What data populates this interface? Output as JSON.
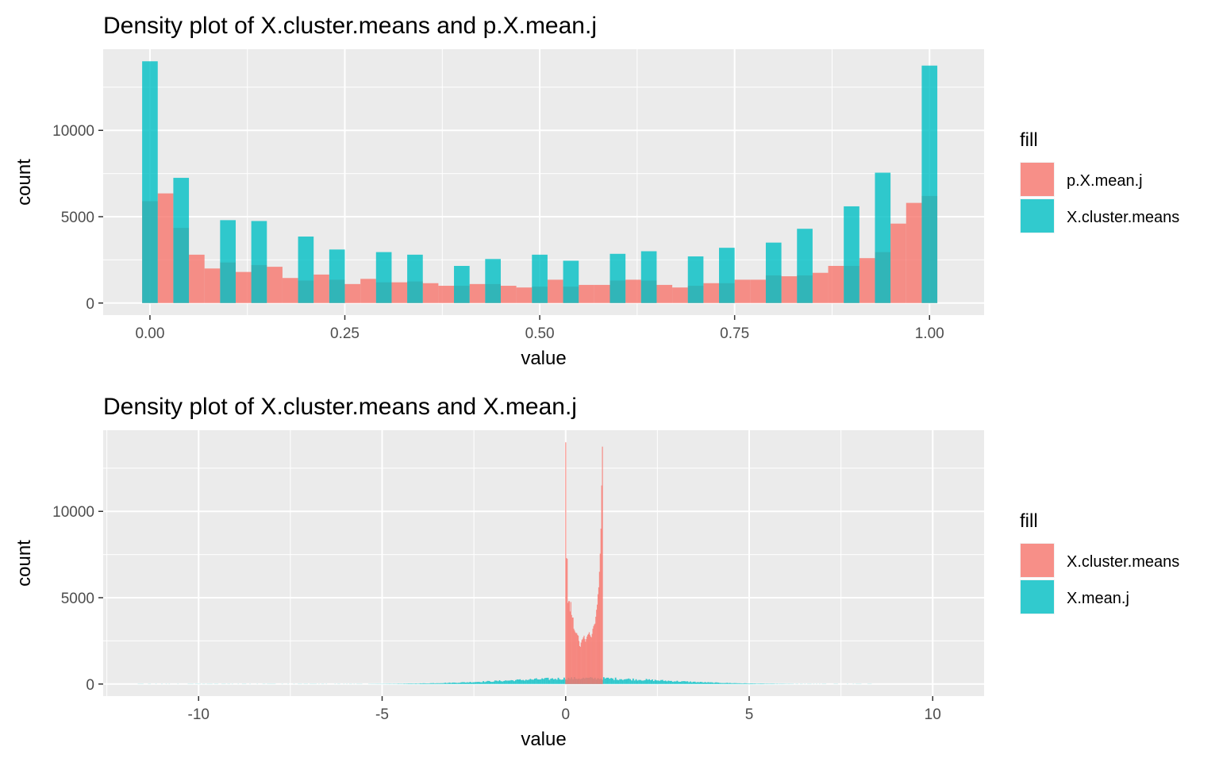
{
  "chart_data": [
    {
      "type": "histogram",
      "title": "Density plot of X.cluster.means and p.X.mean.j",
      "xlabel": "value",
      "ylabel": "count",
      "xlim": [
        -0.06,
        1.07
      ],
      "ylim": [
        -700,
        14700
      ],
      "x_ticks": [
        0,
        0.25,
        0.5,
        0.75,
        1
      ],
      "x_tick_labels": [
        "0.00",
        "0.25",
        "0.50",
        "0.75",
        "1.00"
      ],
      "y_ticks": [
        0,
        5000,
        10000
      ],
      "y_tick_labels": [
        "0",
        "5000",
        "10000"
      ],
      "grid": true,
      "bin_width": 0.02,
      "bin_centers": [
        0,
        0.02,
        0.04,
        0.06,
        0.08,
        0.1,
        0.12,
        0.14,
        0.16,
        0.18,
        0.2,
        0.22,
        0.24,
        0.26,
        0.28,
        0.3,
        0.32,
        0.34,
        0.36,
        0.38,
        0.4,
        0.42,
        0.44,
        0.46,
        0.48,
        0.5,
        0.52,
        0.54,
        0.56,
        0.58,
        0.6,
        0.62,
        0.64,
        0.66,
        0.68,
        0.7,
        0.72,
        0.74,
        0.76,
        0.78,
        0.8,
        0.82,
        0.84,
        0.86,
        0.88,
        0.9,
        0.92,
        0.94,
        0.96,
        0.98,
        1
      ],
      "legend": {
        "title": "fill",
        "position": "right"
      },
      "series": [
        {
          "name": "p.X.mean.j",
          "color": "#F8766D",
          "values": [
            5900,
            6350,
            4350,
            2800,
            2000,
            2350,
            1800,
            2200,
            2100,
            1450,
            1300,
            1650,
            1350,
            1100,
            1400,
            1200,
            1200,
            1250,
            1150,
            1000,
            1000,
            1100,
            1100,
            1000,
            900,
            950,
            1350,
            950,
            1050,
            1050,
            1300,
            1350,
            1300,
            1050,
            900,
            1000,
            1150,
            1150,
            1350,
            1350,
            1600,
            1550,
            1600,
            1750,
            2150,
            2150,
            2600,
            2950,
            4600,
            5800,
            6200
          ]
        },
        {
          "name": "X.cluster.means",
          "color": "#00BFC4",
          "values": [
            14000,
            0,
            7250,
            0,
            0,
            4800,
            0,
            4750,
            0,
            0,
            3850,
            0,
            3100,
            0,
            0,
            2950,
            0,
            2800,
            0,
            0,
            2150,
            0,
            2550,
            0,
            0,
            2800,
            0,
            2450,
            0,
            0,
            2850,
            0,
            3000,
            0,
            0,
            2700,
            0,
            3200,
            0,
            0,
            3500,
            0,
            4300,
            0,
            0,
            5600,
            0,
            7550,
            0,
            0,
            13750
          ]
        }
      ]
    },
    {
      "type": "histogram",
      "title": "Density plot of X.cluster.means and X.mean.j",
      "xlabel": "value",
      "ylabel": "count",
      "xlim": [
        -12.6,
        11.4
      ],
      "ylim": [
        -700,
        14700
      ],
      "x_ticks": [
        -10,
        -5,
        0,
        5,
        10
      ],
      "x_tick_labels": [
        "-10",
        "-5",
        "0",
        "5",
        "10"
      ],
      "y_ticks": [
        0,
        5000,
        10000
      ],
      "y_tick_labels": [
        "0",
        "5000",
        "10000"
      ],
      "grid": true,
      "legend": {
        "title": "fill",
        "position": "right"
      },
      "series": [
        {
          "name": "X.cluster.means",
          "color": "#F8766D",
          "x": [
            0,
            0.02,
            0.04,
            0.06,
            0.08,
            0.1,
            0.12,
            0.14,
            0.16,
            0.18,
            0.2,
            0.22,
            0.24,
            0.26,
            0.28,
            0.3,
            0.32,
            0.34,
            0.36,
            0.38,
            0.4,
            0.42,
            0.44,
            0.46,
            0.48,
            0.5,
            0.52,
            0.54,
            0.56,
            0.58,
            0.6,
            0.62,
            0.64,
            0.66,
            0.68,
            0.7,
            0.72,
            0.74,
            0.76,
            0.78,
            0.8,
            0.82,
            0.84,
            0.86,
            0.88,
            0.9,
            0.92,
            0.94,
            0.96,
            0.98,
            1
          ],
          "values": [
            14000,
            7300,
            7250,
            4700,
            4800,
            4800,
            4200,
            4750,
            4000,
            3850,
            3850,
            3200,
            3100,
            3000,
            2950,
            2950,
            2850,
            2800,
            2500,
            2200,
            2150,
            2400,
            2550,
            2600,
            2700,
            2800,
            2600,
            2450,
            2600,
            2750,
            2850,
            2900,
            3000,
            2850,
            2750,
            2700,
            2900,
            3200,
            3350,
            3450,
            3500,
            3900,
            4300,
            4600,
            5200,
            5600,
            6500,
            7550,
            9000,
            11500,
            13750
          ]
        },
        {
          "name": "X.mean.j",
          "color": "#00BFC4",
          "distribution": "normal",
          "center": 0.5,
          "sd": 2.1,
          "range": [
            -11.7,
            8.3
          ],
          "peak_count": 330
        }
      ]
    }
  ]
}
